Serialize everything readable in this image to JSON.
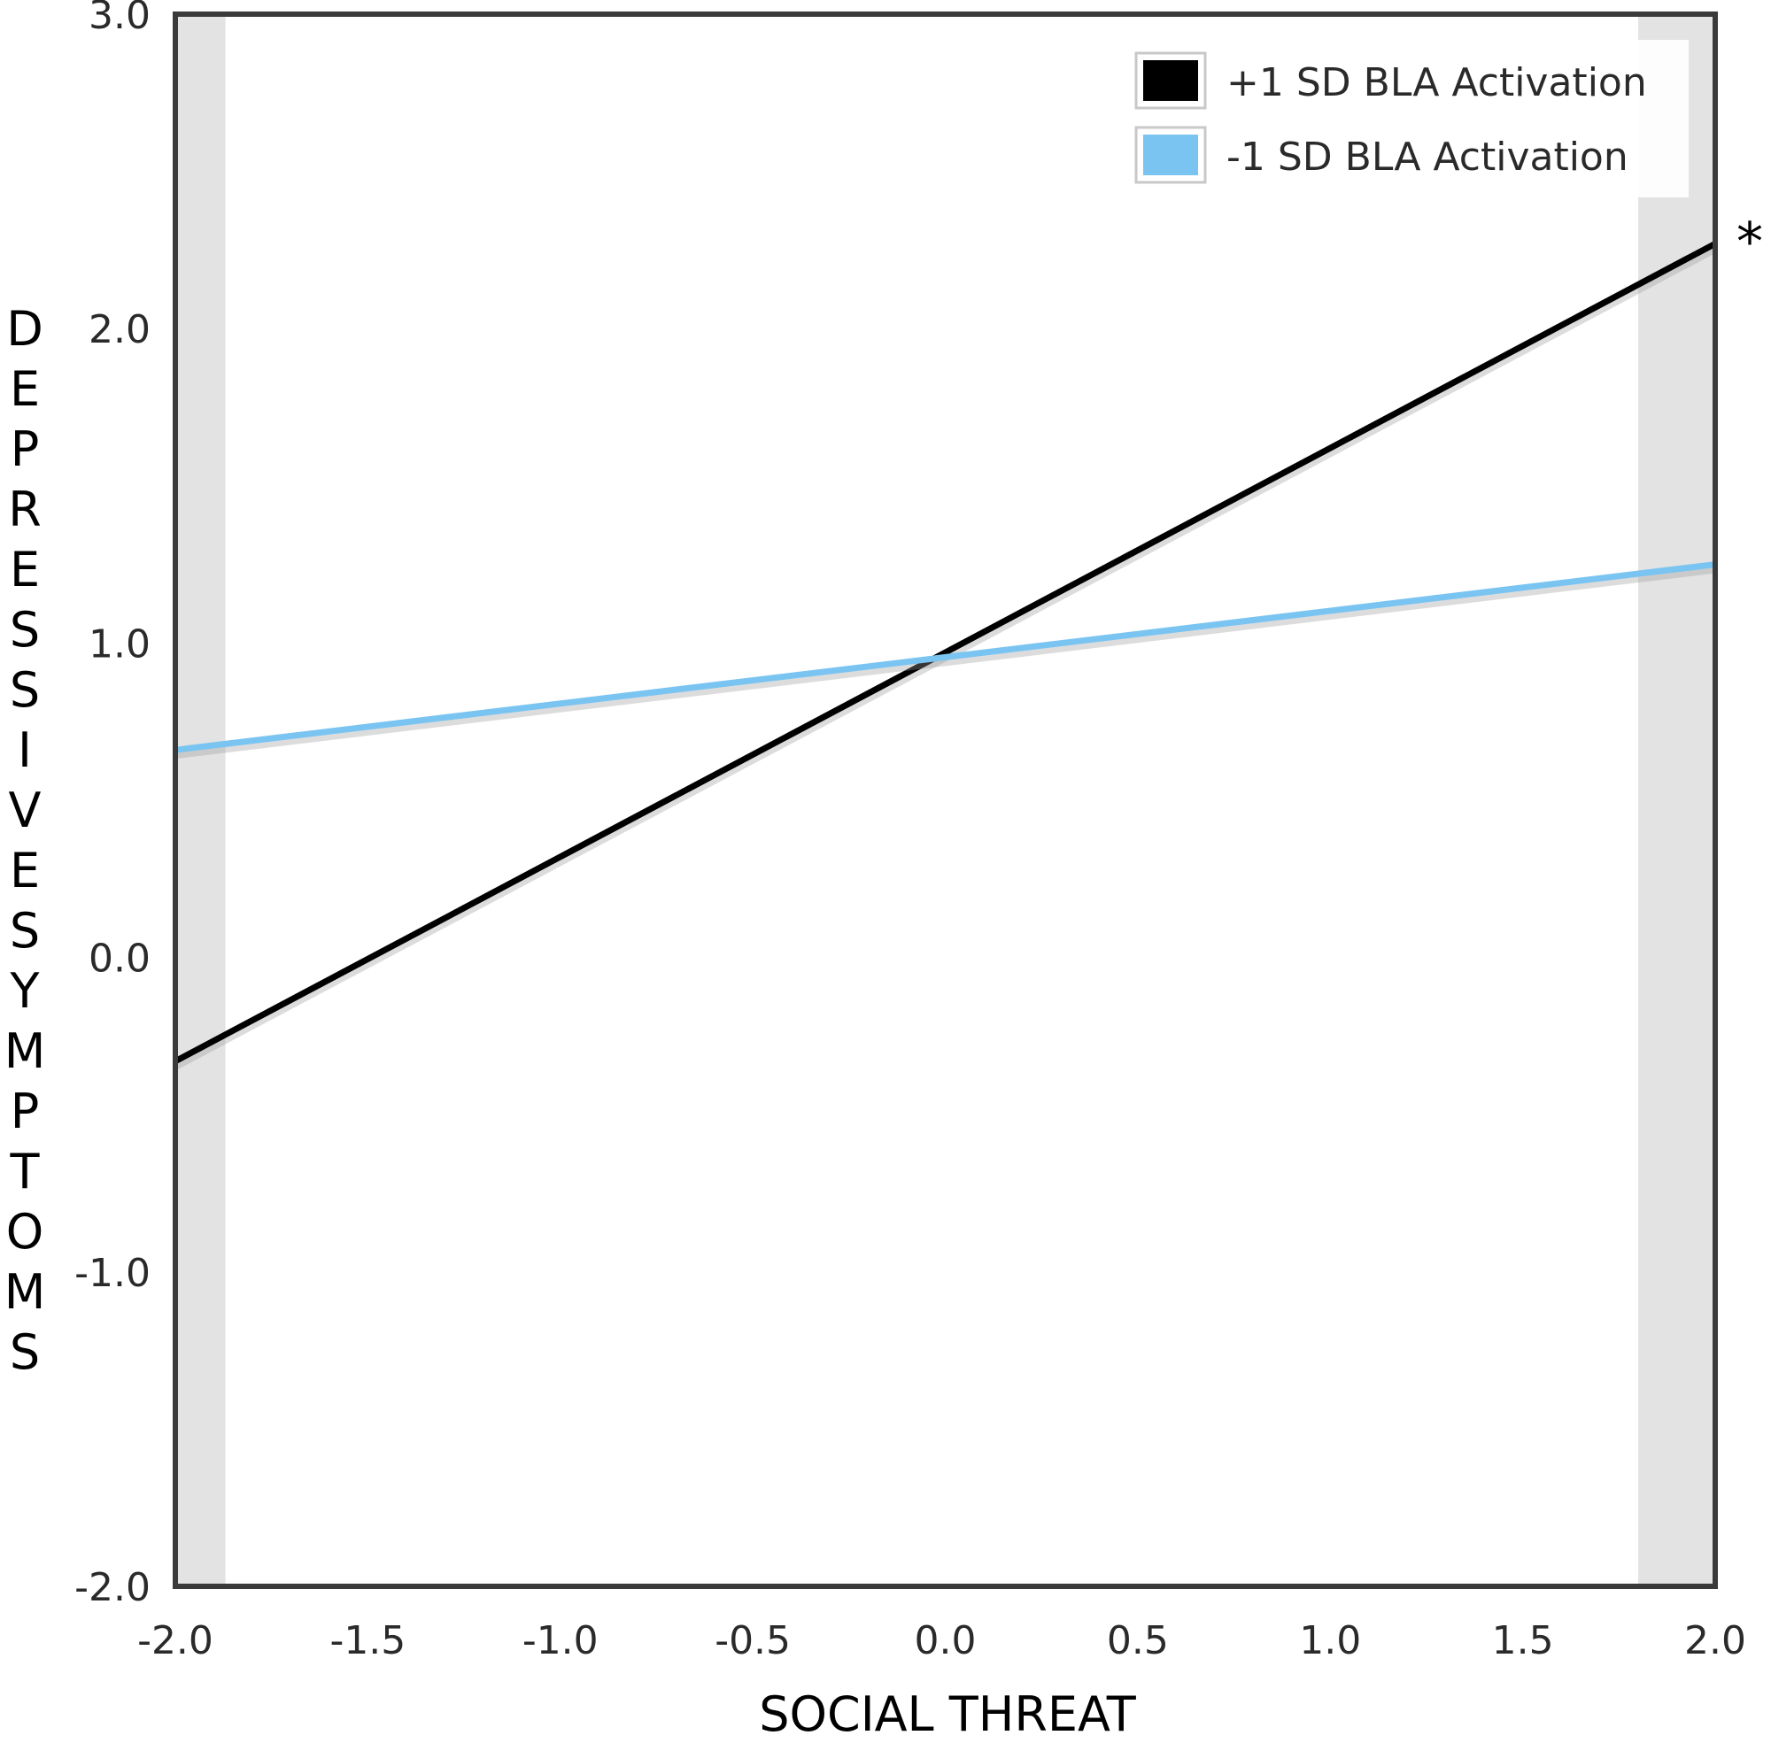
{
  "chart_data": {
    "type": "line",
    "xlabel": "SOCIAL THREAT",
    "ylabel": "DEPRESSIVESYMPTOMS",
    "xlim": [
      -2.0,
      2.0
    ],
    "ylim": [
      -2.0,
      3.0
    ],
    "xticks": [
      "-2.0",
      "-1.5",
      "-1.0",
      "-0.5",
      "0.0",
      "0.5",
      "1.0",
      "1.5",
      "2.0"
    ],
    "yticks": [
      "3.0",
      "2.0",
      "1.0",
      "0.0",
      "-1.0",
      "-2.0"
    ],
    "grid": false,
    "legend_position": "top-right",
    "shaded_regions": [
      {
        "x_from": -2.0,
        "x_to": -1.87,
        "color": "#e3e3e3"
      },
      {
        "x_from": 1.8,
        "x_to": 2.0,
        "color": "#e3e3e3"
      }
    ],
    "series": [
      {
        "name": "+1 SD BLA Activation",
        "color": "#000000",
        "x": [
          -2.0,
          2.0
        ],
        "y": [
          -0.33,
          2.27
        ]
      },
      {
        "name": "-1 SD BLA Activation",
        "color": "#7ac4f2",
        "x": [
          -2.0,
          2.0
        ],
        "y": [
          0.66,
          1.25
        ]
      }
    ],
    "annotation": "*"
  }
}
